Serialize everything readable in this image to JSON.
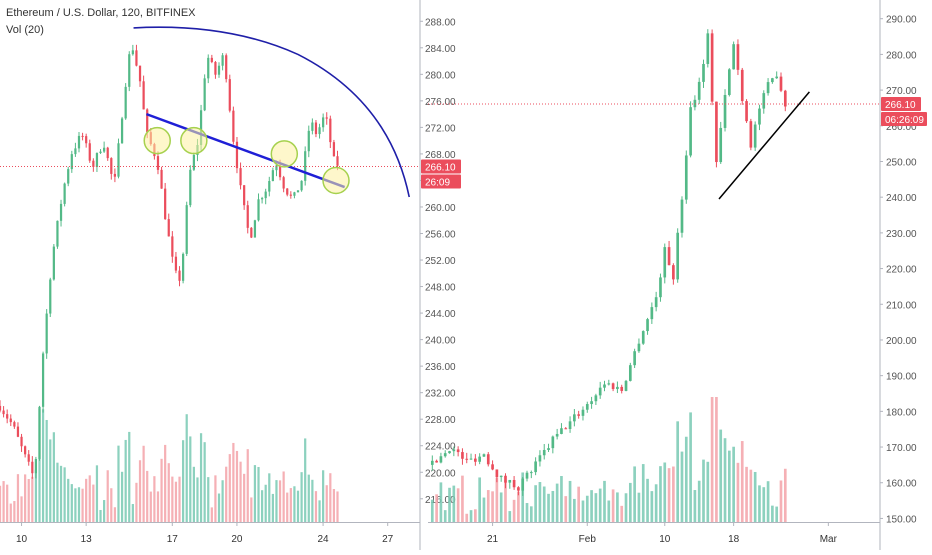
{
  "header": {
    "title": "Ethereum / U.S. Dollar, 120, BITFINEX",
    "volume": "Vol (20)"
  },
  "colors": {
    "up": "#53b987",
    "down": "#eb4d5c",
    "vol_up": "#78c9b3",
    "vol_down": "#f3a2a8",
    "price_line": "#eb4d5c",
    "trend": "#1f1fd6",
    "arc": "#1f1fa8",
    "circle": "#a6d14e",
    "highlight": "#fdf0a0"
  },
  "chart_data": [
    {
      "type": "candlestick",
      "title": "Ethereum / U.S. Dollar, 120, BITFINEX",
      "timeframe": "120",
      "xlabel": "",
      "ylabel": "",
      "x_ticks": [
        "10",
        "13",
        "17",
        "20",
        "24",
        "27"
      ],
      "x_tick_days": [
        10,
        13,
        17,
        20,
        24,
        27
      ],
      "xlim": [
        9,
        28.5
      ],
      "y_ticks": [
        "216.00",
        "220.00",
        "224.00",
        "228.00",
        "232.00",
        "236.00",
        "240.00",
        "244.00",
        "248.00",
        "252.00",
        "256.00",
        "260.00",
        "264.00",
        "268.00",
        "272.00",
        "276.00",
        "280.00",
        "284.00",
        "288.00"
      ],
      "ylim": [
        212.5,
        290
      ],
      "price_label": "266.10",
      "countdown_label": "26:09",
      "last_price": 266.1,
      "grid": false,
      "key_points": [
        {
          "day": 9.0,
          "price": 230
        },
        {
          "day": 9.6,
          "price": 227
        },
        {
          "day": 10.2,
          "price": 222
        },
        {
          "day": 10.6,
          "price": 219
        },
        {
          "day": 11.0,
          "price": 238
        },
        {
          "day": 11.4,
          "price": 252
        },
        {
          "day": 11.9,
          "price": 262
        },
        {
          "day": 12.3,
          "price": 268
        },
        {
          "day": 12.8,
          "price": 271
        },
        {
          "day": 13.3,
          "price": 266
        },
        {
          "day": 13.8,
          "price": 270
        },
        {
          "day": 14.3,
          "price": 263
        },
        {
          "day": 14.8,
          "price": 278
        },
        {
          "day": 15.1,
          "price": 285
        },
        {
          "day": 15.5,
          "price": 279
        },
        {
          "day": 15.8,
          "price": 271
        },
        {
          "day": 16.3,
          "price": 267
        },
        {
          "day": 16.7,
          "price": 258
        },
        {
          "day": 17.1,
          "price": 250
        },
        {
          "day": 17.4,
          "price": 249
        },
        {
          "day": 17.8,
          "price": 265
        },
        {
          "day": 18.2,
          "price": 270
        },
        {
          "day": 18.6,
          "price": 283
        },
        {
          "day": 19.0,
          "price": 280
        },
        {
          "day": 19.4,
          "price": 283
        },
        {
          "day": 19.8,
          "price": 271
        },
        {
          "day": 20.2,
          "price": 262
        },
        {
          "day": 20.6,
          "price": 255
        },
        {
          "day": 21.0,
          "price": 261
        },
        {
          "day": 21.4,
          "price": 263
        },
        {
          "day": 21.8,
          "price": 267
        },
        {
          "day": 22.2,
          "price": 263
        },
        {
          "day": 22.6,
          "price": 261
        },
        {
          "day": 23.0,
          "price": 264
        },
        {
          "day": 23.4,
          "price": 273
        },
        {
          "day": 23.7,
          "price": 271
        },
        {
          "day": 24.1,
          "price": 274
        },
        {
          "day": 24.5,
          "price": 267
        },
        {
          "day": 24.8,
          "price": 266
        }
      ],
      "trendline": {
        "from": {
          "day": 15.8,
          "price": 274
        },
        "to": {
          "day": 25.0,
          "price": 263
        }
      },
      "arc": {
        "from": {
          "day": 15.2,
          "price": 287
        },
        "peak": {
          "day": 16.8,
          "price": 287.3
        },
        "to": {
          "day": 28.0,
          "price": 261.5
        }
      },
      "circles": [
        {
          "day": 16.3,
          "price": 270
        },
        {
          "day": 18.0,
          "price": 270
        },
        {
          "day": 22.2,
          "price": 268
        },
        {
          "day": 24.6,
          "price": 264
        }
      ],
      "volume": {
        "name": "Vol (20)"
      }
    },
    {
      "type": "candlestick",
      "x_ticks": [
        "21",
        "Feb",
        "10",
        "18",
        "Mar"
      ],
      "x_tick_days": [
        21,
        32,
        41,
        49,
        60
      ],
      "xlim": [
        13.5,
        66
      ],
      "y_ticks": [
        "150.00",
        "160.00",
        "170.00",
        "180.00",
        "190.00",
        "200.00",
        "210.00",
        "220.00",
        "230.00",
        "240.00",
        "250.00",
        "260.00",
        "270.00",
        "280.00",
        "290.00"
      ],
      "ylim": [
        149,
        293
      ],
      "price_label": "266.10",
      "countdown_label": "06:26:09",
      "last_price": 266.1,
      "grid": false,
      "key_points": [
        {
          "day": 14,
          "price": 165
        },
        {
          "day": 16,
          "price": 170
        },
        {
          "day": 18,
          "price": 166
        },
        {
          "day": 20,
          "price": 168
        },
        {
          "day": 22,
          "price": 161
        },
        {
          "day": 24,
          "price": 159
        },
        {
          "day": 26,
          "price": 165
        },
        {
          "day": 28,
          "price": 172
        },
        {
          "day": 30,
          "price": 177
        },
        {
          "day": 32,
          "price": 182
        },
        {
          "day": 34,
          "price": 188
        },
        {
          "day": 36,
          "price": 186
        },
        {
          "day": 38,
          "price": 200
        },
        {
          "day": 40,
          "price": 212
        },
        {
          "day": 41,
          "price": 225
        },
        {
          "day": 42,
          "price": 218
        },
        {
          "day": 43,
          "price": 240
        },
        {
          "day": 44,
          "price": 265
        },
        {
          "day": 45,
          "price": 272
        },
        {
          "day": 46,
          "price": 285
        },
        {
          "day": 47,
          "price": 250
        },
        {
          "day": 48,
          "price": 268
        },
        {
          "day": 49,
          "price": 283
        },
        {
          "day": 50,
          "price": 268
        },
        {
          "day": 51,
          "price": 255
        },
        {
          "day": 52,
          "price": 265
        },
        {
          "day": 53,
          "price": 271
        },
        {
          "day": 54,
          "price": 275
        },
        {
          "day": 55,
          "price": 266
        }
      ],
      "trendline": {
        "from": {
          "day": 47.3,
          "price": 239.5
        },
        "to": {
          "day": 57.8,
          "price": 269.5
        }
      }
    }
  ]
}
